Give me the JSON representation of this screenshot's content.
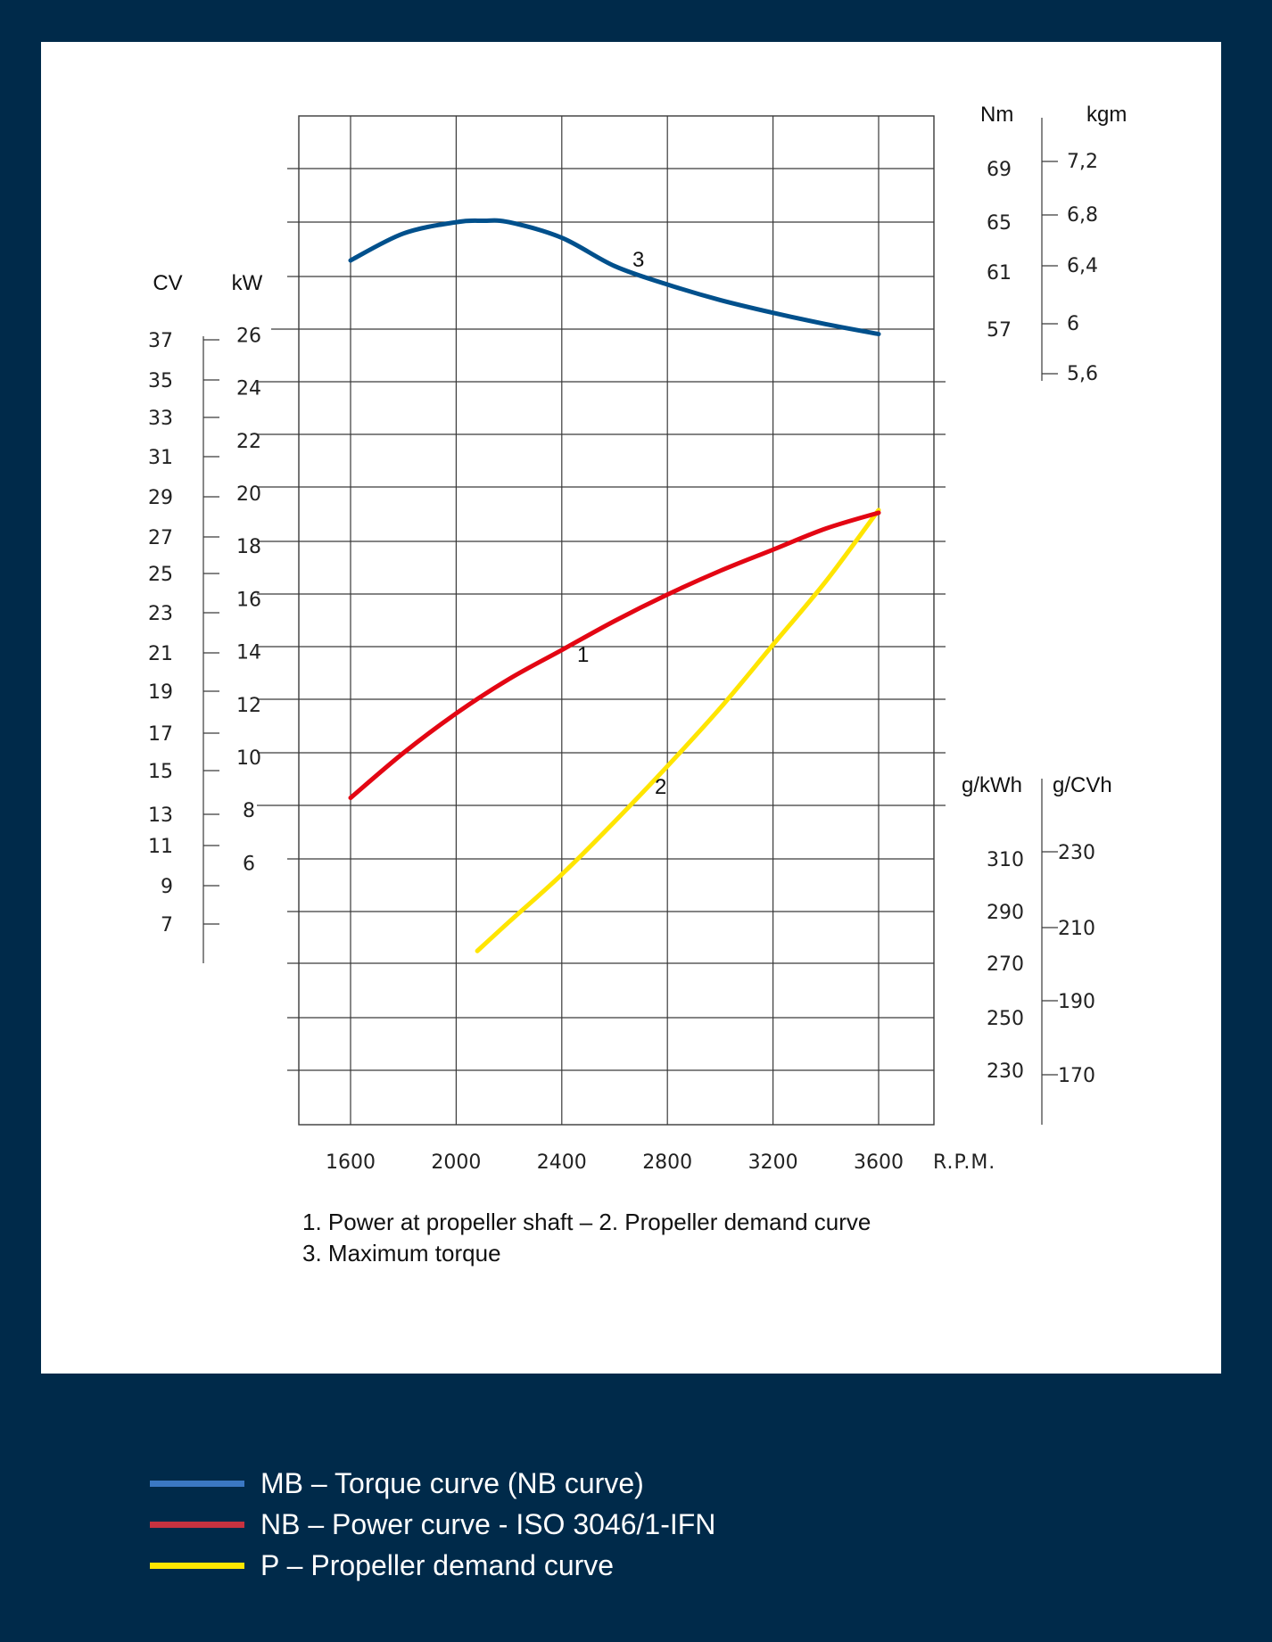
{
  "chart_data": {
    "type": "line",
    "x_axis": {
      "ticks": [
        "1600",
        "2000",
        "2400",
        "2800",
        "3200",
        "3600"
      ],
      "unit": "R.P.M.",
      "range": [
        1400,
        3800
      ]
    },
    "axes": {
      "cv": {
        "label": "CV",
        "ticks": [
          "37",
          "35",
          "33",
          "31",
          "29",
          "27",
          "25",
          "23",
          "21",
          "19",
          "17",
          "15",
          "13",
          "11",
          "9",
          "7"
        ]
      },
      "kw": {
        "label": "kW",
        "ticks": [
          "26",
          "24",
          "22",
          "20",
          "18",
          "16",
          "14",
          "12",
          "10",
          "8",
          "6"
        ]
      },
      "nm": {
        "label": "Nm",
        "ticks": [
          "69",
          "65",
          "61",
          "57"
        ]
      },
      "kgm": {
        "label": "kgm",
        "ticks": [
          "7,2",
          "6,8",
          "6,4",
          "6",
          "5,6"
        ]
      },
      "gkwh": {
        "label": "g/kWh",
        "ticks": [
          "310",
          "290",
          "270",
          "250",
          "230"
        ]
      },
      "gcvh": {
        "label": "g/CVh",
        "ticks": [
          "230",
          "210",
          "190",
          "170"
        ]
      }
    },
    "series": [
      {
        "name": "3",
        "color": "#00508c",
        "y_axis": "Nm",
        "x": [
          1600,
          1800,
          2000,
          2100,
          2200,
          2400,
          2600,
          2800,
          3000,
          3200,
          3400,
          3600
        ],
        "y": [
          61.6,
          63.5,
          64.3,
          64.4,
          64.3,
          63.2,
          61.2,
          59.9,
          58.8,
          57.9,
          57.1,
          56.4
        ]
      },
      {
        "name": "1",
        "color": "#e30613",
        "y_axis": "kW",
        "x": [
          1600,
          1800,
          2000,
          2200,
          2400,
          2600,
          2800,
          3000,
          3200,
          3400,
          3600
        ],
        "y": [
          8.9,
          10.6,
          12.1,
          13.4,
          14.5,
          15.6,
          16.6,
          17.5,
          18.3,
          19.1,
          19.7
        ]
      },
      {
        "name": "2",
        "color": "#ffe500",
        "y_axis": "kW",
        "x": [
          2080,
          2200,
          2400,
          2600,
          2800,
          3000,
          3200,
          3400,
          3600
        ],
        "y": [
          3.1,
          4.2,
          6.0,
          8.0,
          10.1,
          12.3,
          14.7,
          17.1,
          19.8
        ]
      }
    ],
    "caption": {
      "line1": "1. Power at propeller shaft –  2. Propeller demand curve",
      "line2": "3. Maximum torque"
    }
  },
  "legend": [
    {
      "color": "#3b78c3",
      "label": "MB – Torque curve (NB curve)"
    },
    {
      "color": "#c83240",
      "label": "NB – Power curve - ISO 3046/1-IFN"
    },
    {
      "color": "#ffe500",
      "label": "P – Propeller demand curve"
    }
  ]
}
